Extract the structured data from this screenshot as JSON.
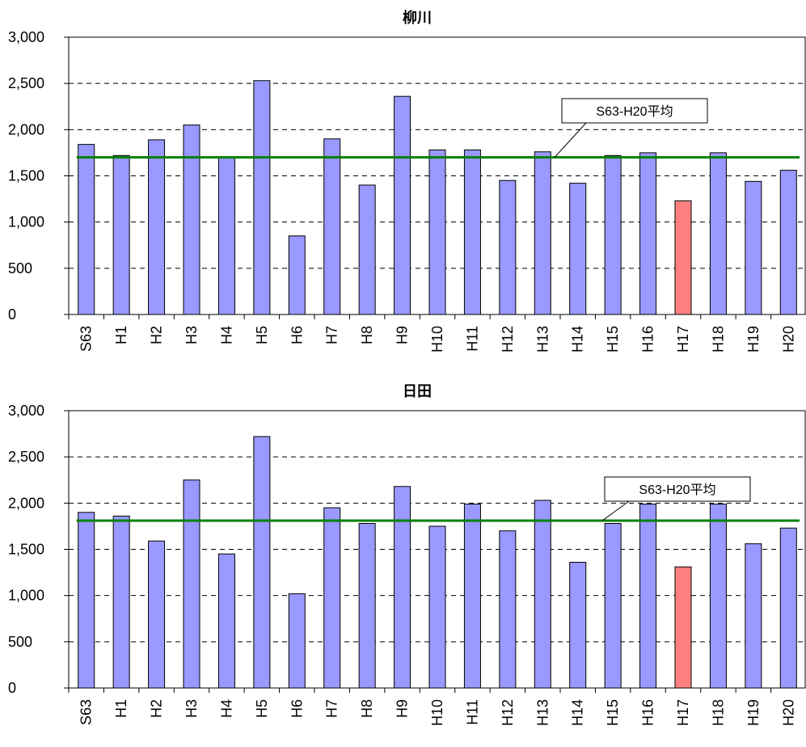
{
  "chart_data": [
    {
      "type": "bar",
      "title": "柳川",
      "categories": [
        "S63",
        "H1",
        "H2",
        "H3",
        "H4",
        "H5",
        "H6",
        "H7",
        "H8",
        "H9",
        "H10",
        "H11",
        "H12",
        "H13",
        "H14",
        "H15",
        "H16",
        "H17",
        "H18",
        "H19",
        "H20"
      ],
      "values": [
        1840,
        1720,
        1890,
        2050,
        1700,
        2530,
        850,
        1900,
        1400,
        2360,
        1780,
        1780,
        1450,
        1760,
        1420,
        1720,
        1750,
        1230,
        1750,
        1440,
        1560
      ],
      "highlight_category": "H17",
      "average": {
        "label": "S63-H20平均",
        "value": 1700
      },
      "ylim": [
        0,
        3000
      ],
      "yticks": [
        0,
        500,
        1000,
        1500,
        2000,
        2500,
        3000
      ],
      "ytick_labels": [
        "0",
        "500",
        "1,000",
        "1,500",
        "2,000",
        "2,500",
        "3,000"
      ],
      "xlabel": "",
      "ylabel": "",
      "grid": "horizontal dashed",
      "colors": {
        "bar": "#9999ff",
        "highlight": "#ff8080",
        "average": "#008000",
        "edge": "#000000"
      }
    },
    {
      "type": "bar",
      "title": "日田",
      "categories": [
        "S63",
        "H1",
        "H2",
        "H3",
        "H4",
        "H5",
        "H6",
        "H7",
        "H8",
        "H9",
        "H10",
        "H11",
        "H12",
        "H13",
        "H14",
        "H15",
        "H16",
        "H17",
        "H18",
        "H19",
        "H20"
      ],
      "values": [
        1900,
        1860,
        1590,
        2250,
        1450,
        2720,
        1020,
        1950,
        1780,
        2180,
        1750,
        1990,
        1700,
        2030,
        1360,
        1780,
        1990,
        1310,
        1990,
        1560,
        1730
      ],
      "highlight_category": "H17",
      "average": {
        "label": "S63-H20平均",
        "value": 1810
      },
      "ylim": [
        0,
        3000
      ],
      "yticks": [
        0,
        500,
        1000,
        1500,
        2000,
        2500,
        3000
      ],
      "ytick_labels": [
        "0",
        "500",
        "1,000",
        "1,500",
        "2,000",
        "2,500",
        "3,000"
      ],
      "xlabel": "",
      "ylabel": "",
      "grid": "horizontal dashed",
      "colors": {
        "bar": "#9999ff",
        "highlight": "#ff8080",
        "average": "#008000",
        "edge": "#000000"
      }
    }
  ]
}
